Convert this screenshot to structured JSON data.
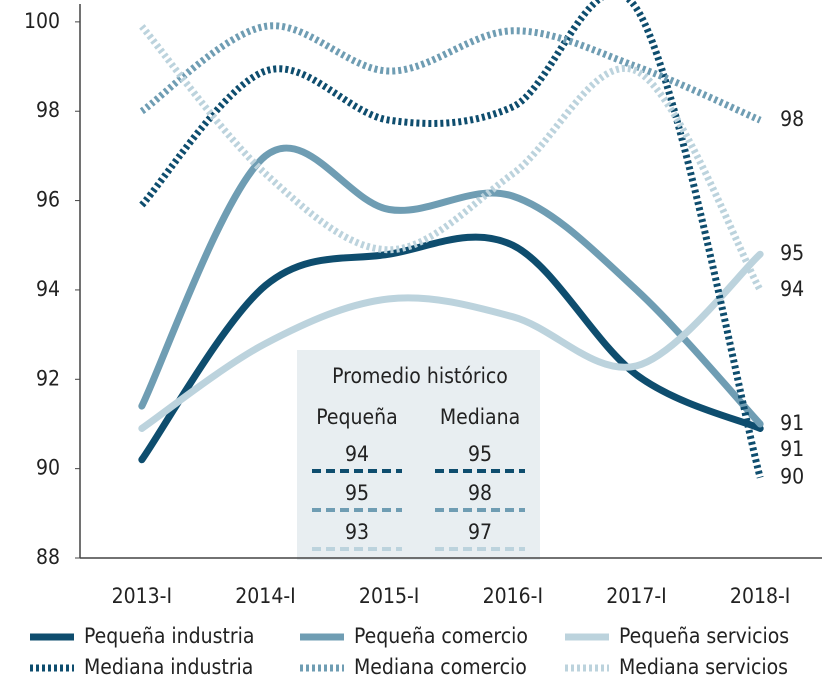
{
  "chart_data": {
    "type": "line",
    "categories": [
      "2013-I",
      "2014-I",
      "2015-I",
      "2016-I",
      "2017-I",
      "2018-I"
    ],
    "ylim": [
      88,
      100.4
    ],
    "yticks": [
      88,
      90,
      92,
      94,
      96,
      98,
      100
    ],
    "series": [
      {
        "name": "Pequeña industria",
        "color": "#0e4d6e",
        "style": "solid",
        "values": [
          90.2,
          94.1,
          94.8,
          95.0,
          92.1,
          90.9
        ],
        "value_labels": [
          null,
          null,
          null,
          null,
          null,
          "91"
        ]
      },
      {
        "name": "Pequeña comercio",
        "color": "#6f9db3",
        "style": "solid",
        "values": [
          91.4,
          97.0,
          95.8,
          96.1,
          94.0,
          91.0
        ],
        "value_labels": [
          null,
          null,
          null,
          null,
          null,
          "91"
        ]
      },
      {
        "name": "Pequeña servicios",
        "color": "#bcd3dd",
        "style": "solid",
        "values": [
          90.9,
          92.8,
          93.8,
          93.4,
          92.3,
          94.8
        ],
        "value_labels": [
          null,
          null,
          null,
          null,
          null,
          "95"
        ]
      },
      {
        "name": "Mediana industria",
        "color": "#0e4d6e",
        "style": "dotted",
        "values": [
          95.9,
          98.9,
          97.8,
          98.1,
          100.3,
          89.8
        ],
        "value_labels": [
          null,
          null,
          null,
          null,
          null,
          "90"
        ]
      },
      {
        "name": "Mediana comercio",
        "color": "#6f9db3",
        "style": "dotted",
        "values": [
          98.0,
          99.9,
          98.9,
          99.8,
          99.0,
          97.8
        ],
        "value_labels": [
          null,
          null,
          null,
          null,
          null,
          "98"
        ]
      },
      {
        "name": "Mediana servicios",
        "color": "#bcd3dd",
        "style": "dotted",
        "values": [
          99.9,
          96.6,
          94.9,
          96.6,
          98.9,
          94.0
        ],
        "value_labels": [
          null,
          null,
          null,
          null,
          null,
          "94"
        ]
      }
    ],
    "inset": {
      "title": "Promedio histórico",
      "columns": [
        "Pequeña",
        "Mediana"
      ],
      "rows": [
        [
          "94",
          "95"
        ],
        [
          "95",
          "98"
        ],
        [
          "93",
          "97"
        ]
      ],
      "row_colors": [
        "#0e4d6e",
        "#6f9db3",
        "#bcd3dd"
      ]
    }
  }
}
